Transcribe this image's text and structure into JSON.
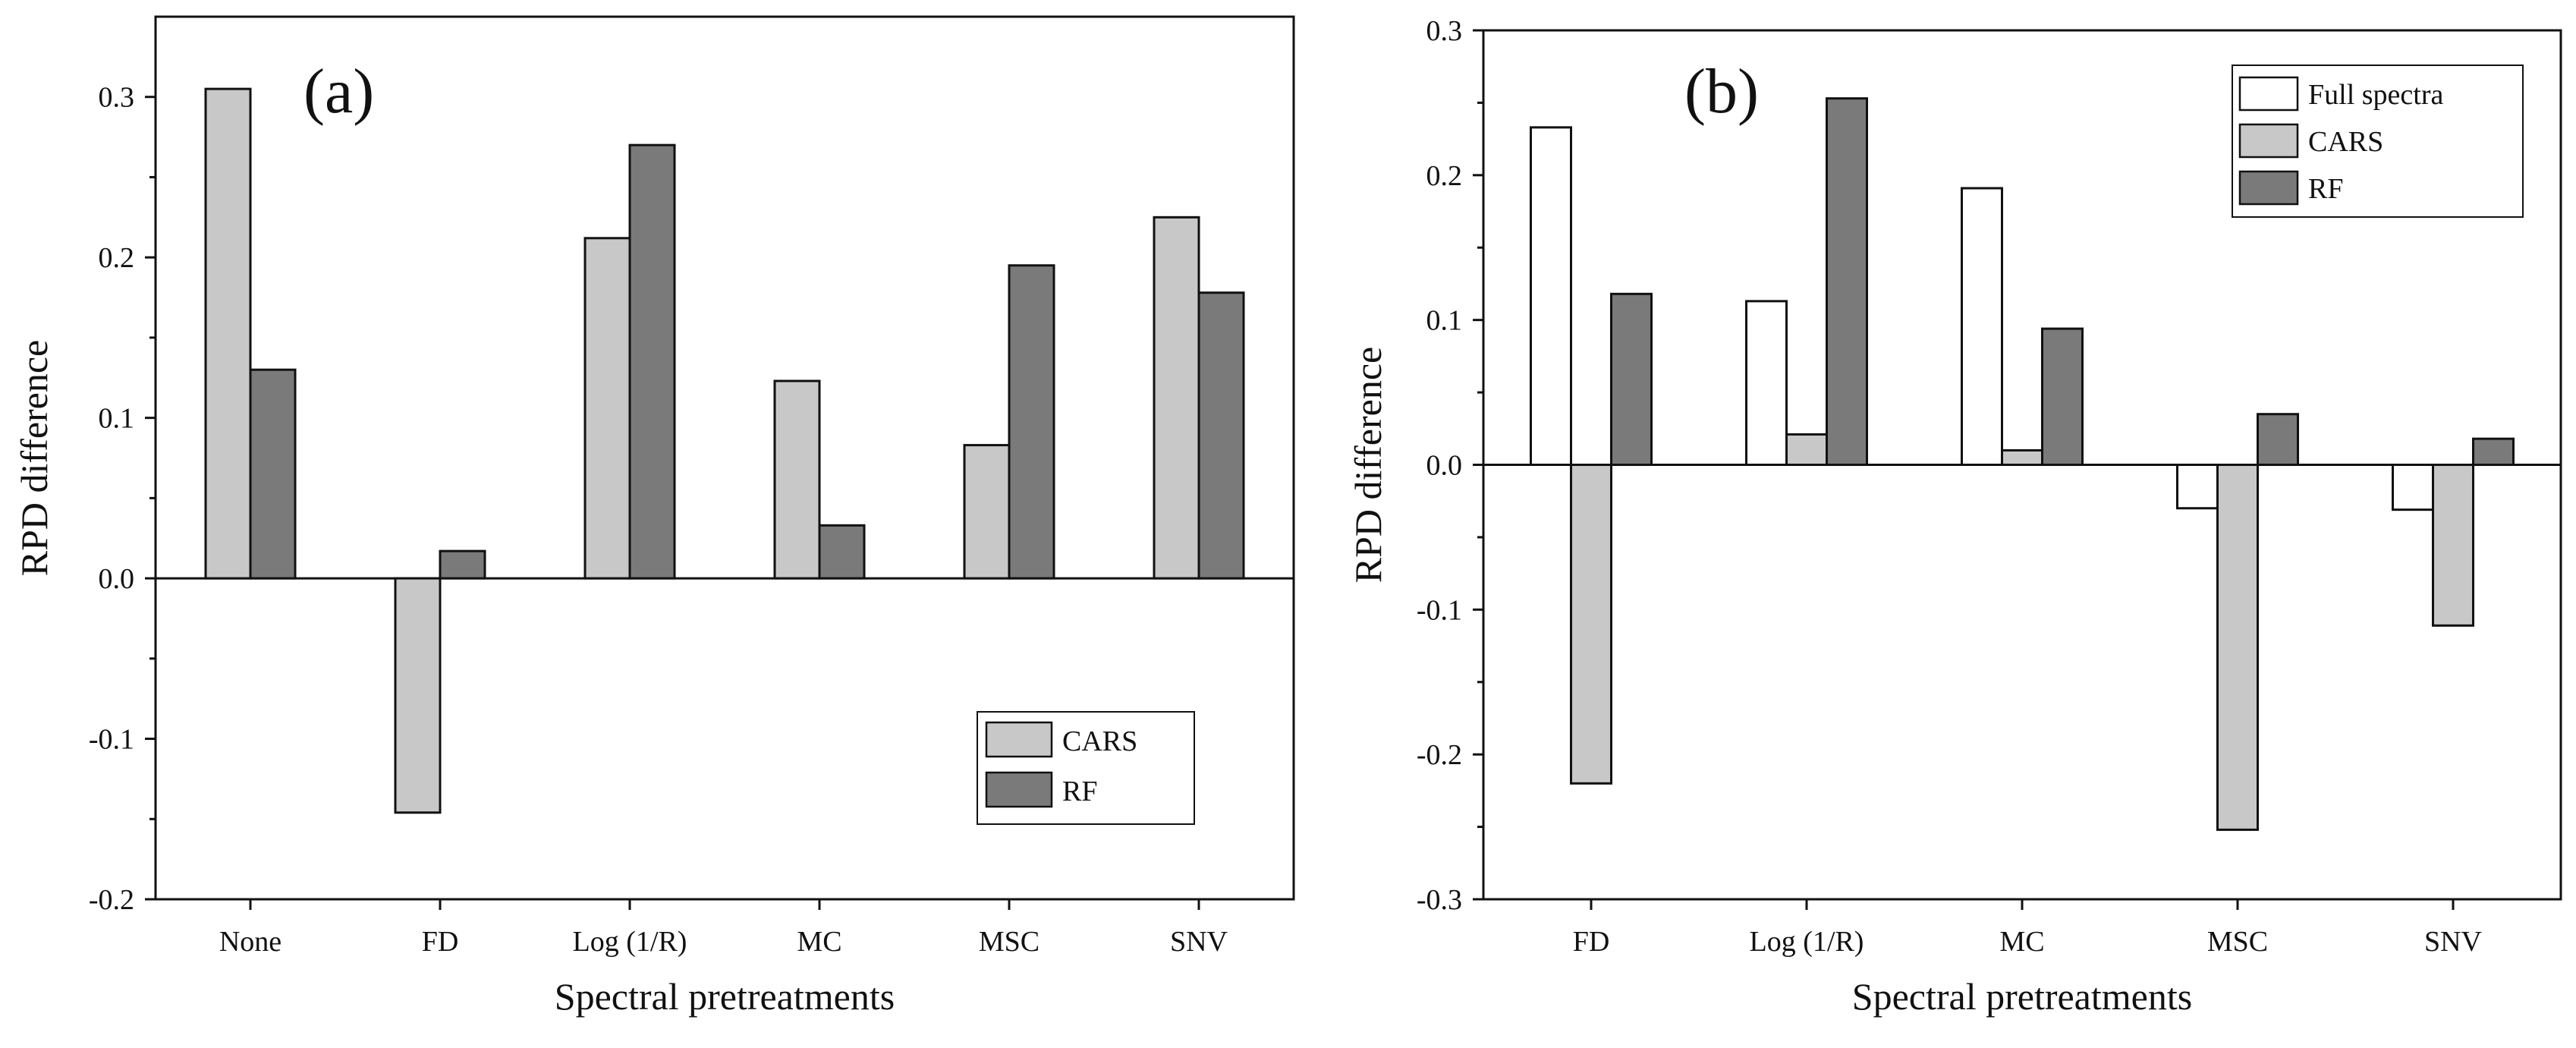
{
  "chart_data": [
    {
      "type": "bar",
      "panel_label": "(a)",
      "categories": [
        "None",
        "FD",
        "Log (1/R)",
        "MC",
        "MSC",
        "SNV"
      ],
      "series": [
        {
          "name": "CARS",
          "values": [
            0.305,
            -0.146,
            0.212,
            0.123,
            0.083,
            0.225
          ],
          "color": "#c8c8c8"
        },
        {
          "name": "RF",
          "values": [
            0.13,
            0.017,
            0.27,
            0.033,
            0.195,
            0.178
          ],
          "color": "#7a7a7a"
        }
      ],
      "xlabel": "Spectral pretreatments",
      "ylabel": "RPD difference",
      "ylim": [
        -0.2,
        0.35
      ],
      "yticks": [
        -0.2,
        -0.1,
        0.0,
        0.1,
        0.2,
        0.3
      ],
      "ytick_labels": [
        "-0.2",
        "-0.1",
        "0.0",
        "0.1",
        "0.2",
        "0.3"
      ],
      "grid": false,
      "legend_position": "bottom-right"
    },
    {
      "type": "bar",
      "panel_label": "(b)",
      "categories": [
        "FD",
        "Log (1/R)",
        "MC",
        "MSC",
        "SNV"
      ],
      "series": [
        {
          "name": "Full spectra",
          "values": [
            0.233,
            0.113,
            0.191,
            -0.03,
            -0.031
          ],
          "color": "#ffffff"
        },
        {
          "name": "CARS",
          "values": [
            -0.22,
            0.021,
            0.01,
            -0.252,
            -0.111
          ],
          "color": "#c8c8c8"
        },
        {
          "name": "RF",
          "values": [
            0.118,
            0.253,
            0.094,
            0.035,
            0.018
          ],
          "color": "#7a7a7a"
        }
      ],
      "xlabel": "Spectral pretreatments",
      "ylabel": "RPD difference",
      "ylim": [
        -0.3,
        0.3
      ],
      "yticks": [
        -0.3,
        -0.2,
        -0.1,
        0.0,
        0.1,
        0.2,
        0.3
      ],
      "ytick_labels": [
        "-0.3",
        "-0.2",
        "-0.1",
        "0.0",
        "0.1",
        "0.2",
        "0.3"
      ],
      "grid": false,
      "legend_position": "top-right"
    }
  ]
}
